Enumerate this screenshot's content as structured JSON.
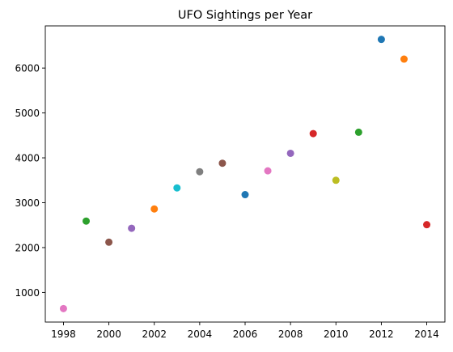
{
  "chart_data": {
    "type": "scatter",
    "title": "UFO Sightings per Year",
    "xlabel": "",
    "ylabel": "",
    "x": [
      1998,
      1999,
      2000,
      2001,
      2002,
      2003,
      2004,
      2005,
      2006,
      2007,
      2008,
      2009,
      2010,
      2011,
      2012,
      2013,
      2014
    ],
    "y": [
      640,
      2590,
      2120,
      2430,
      2860,
      3330,
      3690,
      3880,
      3180,
      3710,
      4100,
      4540,
      3500,
      4570,
      6640,
      6200,
      2510
    ],
    "point_colors": [
      "#e377c2",
      "#2ca02c",
      "#8c564b",
      "#9467bd",
      "#ff7f0e",
      "#17becf",
      "#7f7f7f",
      "#8c564b",
      "#1f77b4",
      "#e377c2",
      "#9467bd",
      "#d62728",
      "#bcbd22",
      "#2ca02c",
      "#1f77b4",
      "#ff7f0e",
      "#d62728"
    ],
    "xlim": [
      1997.2,
      2014.8
    ],
    "ylim": [
      340,
      6940
    ],
    "xticks": [
      1998,
      2000,
      2002,
      2004,
      2006,
      2008,
      2010,
      2012,
      2014
    ],
    "yticks": [
      1000,
      2000,
      3000,
      4000,
      5000,
      6000
    ],
    "grid": false,
    "legend": "none"
  }
}
